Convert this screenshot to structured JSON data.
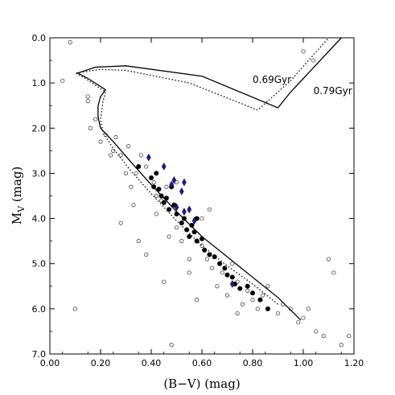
{
  "chart_data": {
    "type": "scatter",
    "xlabel": "(B−V) (mag)",
    "ylabel_main": "M",
    "ylabel_sub": "V",
    "ylabel_unit": " (mag)",
    "xlim": [
      0.0,
      1.2
    ],
    "ylim": [
      7.0,
      0.0
    ],
    "y_inverted": true,
    "grid": false,
    "x_ticks": [
      0.0,
      0.2,
      0.4,
      0.6,
      0.8,
      1.0,
      1.2
    ],
    "x_tick_labels": [
      "0.00",
      "0.20",
      "0.40",
      "0.60",
      "0.80",
      "1.00",
      "1.20"
    ],
    "y_ticks": [
      0.0,
      1.0,
      2.0,
      3.0,
      4.0,
      5.0,
      6.0,
      7.0
    ],
    "y_tick_labels": [
      "0.0",
      "1.0",
      "2.0",
      "3.0",
      "4.0",
      "5.0",
      "6.0",
      "7.0"
    ],
    "colors": {
      "open_marker": "#444444",
      "filled_marker": "#000000",
      "diamond_marker": "#1a1aa0",
      "isochrone": "#000000"
    },
    "isochrones": [
      {
        "label": "0.69Gyr",
        "style": "solid",
        "label_at": [
          0.8,
          1.0
        ],
        "points": [
          [
            0.99,
            6.25
          ],
          [
            0.9,
            5.75
          ],
          [
            0.8,
            5.3
          ],
          [
            0.7,
            4.85
          ],
          [
            0.6,
            4.4
          ],
          [
            0.5,
            3.85
          ],
          [
            0.4,
            3.25
          ],
          [
            0.32,
            2.75
          ],
          [
            0.25,
            2.3
          ],
          [
            0.2,
            2.0
          ],
          [
            0.19,
            1.75
          ],
          [
            0.19,
            1.5
          ],
          [
            0.2,
            1.3
          ],
          [
            0.22,
            1.15
          ],
          [
            0.15,
            0.9
          ],
          [
            0.11,
            0.78
          ],
          [
            0.18,
            0.65
          ],
          [
            0.3,
            0.62
          ],
          [
            0.6,
            0.85
          ],
          [
            0.9,
            1.55
          ],
          [
            0.95,
            1.2
          ],
          [
            1.15,
            0.0
          ]
        ]
      },
      {
        "label": "0.79Gyr",
        "style": "dotted",
        "label_at": [
          1.04,
          1.25
        ],
        "points": [
          [
            0.9,
            5.9
          ],
          [
            0.8,
            5.45
          ],
          [
            0.7,
            5.05
          ],
          [
            0.6,
            4.6
          ],
          [
            0.5,
            4.05
          ],
          [
            0.4,
            3.45
          ],
          [
            0.32,
            2.95
          ],
          [
            0.25,
            2.45
          ],
          [
            0.21,
            2.1
          ],
          [
            0.2,
            1.8
          ],
          [
            0.21,
            1.4
          ],
          [
            0.22,
            1.2
          ],
          [
            0.14,
            0.9
          ],
          [
            0.1,
            0.78
          ],
          [
            0.2,
            0.7
          ],
          [
            0.3,
            0.72
          ],
          [
            0.55,
            1.0
          ],
          [
            0.82,
            1.6
          ],
          [
            0.88,
            1.3
          ],
          [
            0.95,
            0.95
          ],
          [
            1.1,
            0.0
          ]
        ]
      }
    ],
    "series": [
      {
        "marker": "open-circle",
        "points": [
          [
            0.08,
            0.1
          ],
          [
            0.05,
            0.95
          ],
          [
            0.15,
            1.3
          ],
          [
            0.15,
            1.4
          ],
          [
            0.18,
            1.8
          ],
          [
            0.16,
            2.0
          ],
          [
            0.2,
            2.3
          ],
          [
            0.22,
            2.15
          ],
          [
            0.25,
            2.5
          ],
          [
            0.28,
            2.6
          ],
          [
            0.31,
            2.4
          ],
          [
            0.3,
            3.0
          ],
          [
            0.32,
            3.3
          ],
          [
            0.34,
            3.0
          ],
          [
            0.36,
            2.6
          ],
          [
            0.38,
            2.85
          ],
          [
            0.41,
            3.2
          ],
          [
            0.42,
            3.9
          ],
          [
            0.44,
            3.6
          ],
          [
            0.46,
            3.3
          ],
          [
            0.47,
            4.4
          ],
          [
            0.49,
            3.7
          ],
          [
            0.5,
            4.2
          ],
          [
            0.52,
            4.5
          ],
          [
            0.55,
            4.9
          ],
          [
            0.57,
            4.3
          ],
          [
            0.6,
            4.6
          ],
          [
            0.62,
            4.9
          ],
          [
            0.64,
            5.1
          ],
          [
            0.66,
            5.5
          ],
          [
            0.68,
            5.2
          ],
          [
            0.7,
            5.7
          ],
          [
            0.72,
            5.0
          ],
          [
            0.74,
            5.4
          ],
          [
            0.76,
            5.9
          ],
          [
            0.78,
            5.6
          ],
          [
            0.8,
            5.8
          ],
          [
            0.82,
            6.0
          ],
          [
            0.84,
            5.7
          ],
          [
            0.86,
            5.5
          ],
          [
            0.9,
            6.1
          ],
          [
            0.92,
            5.9
          ],
          [
            0.95,
            6.0
          ],
          [
            0.98,
            6.3
          ],
          [
            1.0,
            6.2
          ],
          [
            1.02,
            6.0
          ],
          [
            1.05,
            6.5
          ],
          [
            1.08,
            6.6
          ],
          [
            1.1,
            4.9
          ],
          [
            1.12,
            5.2
          ],
          [
            1.15,
            6.8
          ],
          [
            1.18,
            6.6
          ],
          [
            0.1,
            6.0
          ],
          [
            0.28,
            4.1
          ],
          [
            0.35,
            4.5
          ],
          [
            0.45,
            5.4
          ],
          [
            0.48,
            6.8
          ],
          [
            0.55,
            5.2
          ],
          [
            0.38,
            4.8
          ],
          [
            0.58,
            5.8
          ],
          [
            0.42,
            3.5
          ],
          [
            0.5,
            3.2
          ],
          [
            0.6,
            4.0
          ],
          [
            1.0,
            0.3
          ],
          [
            1.04,
            0.5
          ],
          [
            0.26,
            2.2
          ],
          [
            0.24,
            2.6
          ],
          [
            0.33,
            3.7
          ],
          [
            0.63,
            3.8
          ],
          [
            0.74,
            6.1
          ]
        ]
      },
      {
        "marker": "filled-circle",
        "points": [
          [
            0.35,
            2.85
          ],
          [
            0.4,
            3.1
          ],
          [
            0.41,
            3.3
          ],
          [
            0.42,
            3.0
          ],
          [
            0.43,
            3.35
          ],
          [
            0.44,
            3.5
          ],
          [
            0.45,
            3.65
          ],
          [
            0.46,
            3.55
          ],
          [
            0.47,
            3.8
          ],
          [
            0.48,
            3.3
          ],
          [
            0.5,
            3.9
          ],
          [
            0.52,
            4.1
          ],
          [
            0.53,
            4.0
          ],
          [
            0.54,
            4.25
          ],
          [
            0.55,
            4.4
          ],
          [
            0.56,
            4.15
          ],
          [
            0.57,
            4.3
          ],
          [
            0.58,
            4.5
          ],
          [
            0.6,
            4.45
          ],
          [
            0.61,
            4.7
          ],
          [
            0.63,
            4.8
          ],
          [
            0.65,
            4.85
          ],
          [
            0.67,
            5.0
          ],
          [
            0.69,
            5.1
          ],
          [
            0.7,
            5.25
          ],
          [
            0.72,
            5.3
          ],
          [
            0.73,
            5.45
          ],
          [
            0.75,
            5.55
          ],
          [
            0.78,
            5.5
          ],
          [
            0.8,
            5.65
          ],
          [
            0.83,
            5.8
          ],
          [
            0.86,
            6.0
          ],
          [
            0.58,
            4.0
          ],
          [
            0.49,
            3.7
          ]
        ]
      },
      {
        "marker": "blue-diamond",
        "points": [
          [
            0.39,
            2.65
          ],
          [
            0.45,
            2.85
          ],
          [
            0.48,
            3.25
          ],
          [
            0.49,
            3.15
          ],
          [
            0.52,
            3.4
          ],
          [
            0.53,
            3.2
          ],
          [
            0.5,
            3.75
          ],
          [
            0.53,
            3.85
          ],
          [
            0.55,
            3.8
          ],
          [
            0.57,
            4.05
          ],
          [
            0.72,
            5.45
          ]
        ]
      }
    ]
  }
}
